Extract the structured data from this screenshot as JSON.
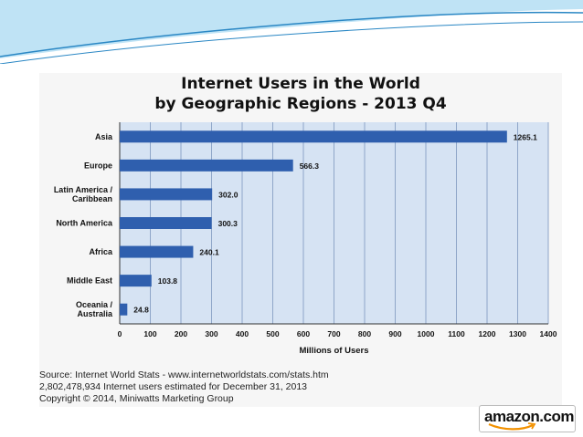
{
  "colors": {
    "bar": "#2f5fae",
    "plot_bg": "#d6e3f3",
    "grid": "#8fa6c8",
    "deco_light": "#bfe3f5",
    "deco_dark": "#2a87c4",
    "amazon_orange": "#f29100"
  },
  "source": {
    "line1": "Source: Internet World Stats - www.internetworldstats.com/stats.htm",
    "line2": "2,802,478,934 Internet users estimated for December 31, 2013",
    "line3": "Copyright © 2014, Miniwatts Marketing Group"
  },
  "logo": {
    "text": "amazon.com",
    "icon": "amazon-smile-logo"
  },
  "chart_data": {
    "type": "bar",
    "orientation": "horizontal",
    "title": "Internet Users in the World",
    "subtitle": "by Geographic Regions - 2013 Q4",
    "categories": [
      [
        "Asia"
      ],
      [
        "Europe"
      ],
      [
        "Latin America /",
        "Caribbean"
      ],
      [
        "North America"
      ],
      [
        "Africa"
      ],
      [
        "Middle East"
      ],
      [
        "Oceania  /",
        "Australia"
      ]
    ],
    "values": [
      1265.1,
      566.3,
      302.0,
      300.3,
      240.1,
      103.8,
      24.8
    ],
    "value_labels": [
      "1265.1",
      "566.3",
      "302.0",
      "300.3",
      "240.1",
      "103.8",
      "24.8"
    ],
    "xlabel": "Millions of Users",
    "ylabel": "",
    "xlim": [
      0,
      1400
    ],
    "xticks": [
      0,
      100,
      200,
      300,
      400,
      500,
      600,
      700,
      800,
      900,
      1000,
      1100,
      1200,
      1300,
      1400
    ],
    "grid": true,
    "legend": "none"
  }
}
